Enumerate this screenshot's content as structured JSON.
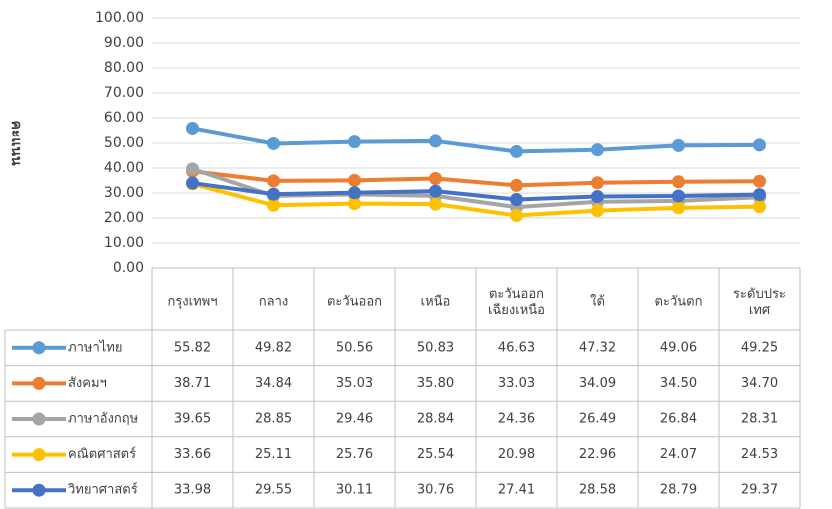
{
  "chart_data": {
    "type": "line",
    "y_label": "คะแนน",
    "categories": [
      "กรุงเทพฯ",
      "กลาง",
      "ตะวันออก",
      "เหนือ",
      "ตะวันออก\nเฉียงเหนือ",
      "ใต้",
      "ตะวันตก",
      "ระดับประ\nเทศ"
    ],
    "ylim": [
      0,
      100
    ],
    "yticks": [
      {
        "value": 0,
        "label": "0.00"
      },
      {
        "value": 10,
        "label": "10.00"
      },
      {
        "value": 20,
        "label": "20.00"
      },
      {
        "value": 30,
        "label": "30.00"
      },
      {
        "value": 40,
        "label": "40.00"
      },
      {
        "value": 50,
        "label": "50.00"
      },
      {
        "value": 60,
        "label": "60.00"
      },
      {
        "value": 70,
        "label": "70.00"
      },
      {
        "value": 80,
        "label": "80.00"
      },
      {
        "value": 90,
        "label": "90.00"
      },
      {
        "value": 100,
        "label": "100.00"
      }
    ],
    "grid": true,
    "series": [
      {
        "name": "ภาษาไทย",
        "color": "#5b9bd5",
        "values": [
          55.82,
          49.82,
          50.56,
          50.83,
          46.63,
          47.32,
          49.06,
          49.25
        ],
        "value_labels": [
          "55.82",
          "49.82",
          "50.56",
          "50.83",
          "46.63",
          "47.32",
          "49.06",
          "49.25"
        ]
      },
      {
        "name": "สังคมฯ",
        "color": "#ed7d31",
        "values": [
          38.71,
          34.84,
          35.03,
          35.8,
          33.03,
          34.09,
          34.5,
          34.7
        ],
        "value_labels": [
          "38.71",
          "34.84",
          "35.03",
          "35.80",
          "33.03",
          "34.09",
          "34.50",
          "34.70"
        ]
      },
      {
        "name": "ภาษาอังกฤษ",
        "color": "#a5a5a5",
        "values": [
          39.65,
          28.85,
          29.46,
          28.84,
          24.36,
          26.49,
          26.84,
          28.31
        ],
        "value_labels": [
          "39.65",
          "28.85",
          "29.46",
          "28.84",
          "24.36",
          "26.49",
          "26.84",
          "28.31"
        ]
      },
      {
        "name": "คณิตศาสตร์",
        "color": "#ffc000",
        "values": [
          33.66,
          25.11,
          25.76,
          25.54,
          20.98,
          22.96,
          24.07,
          24.53
        ],
        "value_labels": [
          "33.66",
          "25.11",
          "25.76",
          "25.54",
          "20.98",
          "22.96",
          "24.07",
          "24.53"
        ]
      },
      {
        "name": "วิทยาศาสตร์",
        "color": "#4472c4",
        "values": [
          33.98,
          29.55,
          30.11,
          30.76,
          27.41,
          28.58,
          28.79,
          29.37
        ],
        "value_labels": [
          "33.98",
          "29.55",
          "30.11",
          "30.76",
          "27.41",
          "28.58",
          "28.79",
          "29.37"
        ]
      }
    ]
  }
}
